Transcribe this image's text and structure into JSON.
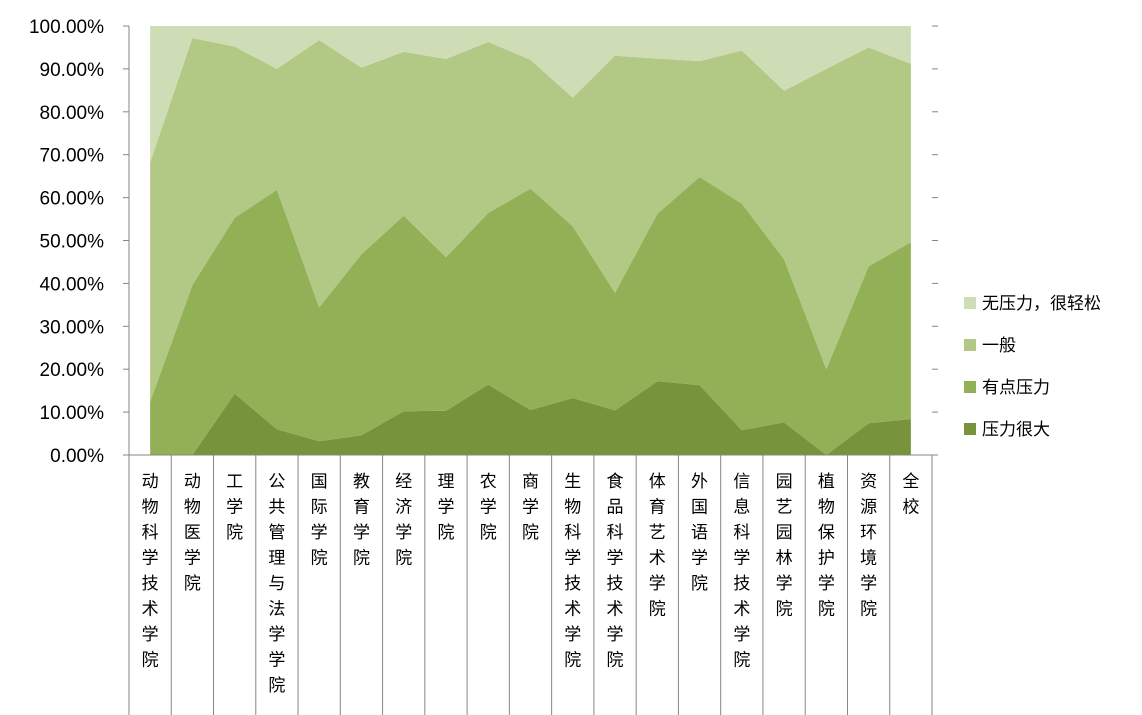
{
  "chart_data": {
    "type": "area",
    "stacked": true,
    "percent": true,
    "ylim": [
      0,
      100
    ],
    "yticks": [
      "0.00%",
      "10.00%",
      "20.00%",
      "30.00%",
      "40.00%",
      "50.00%",
      "60.00%",
      "70.00%",
      "80.00%",
      "90.00%",
      "100.00%"
    ],
    "categories": [
      "动物科学技术学院",
      "动物医学院",
      "工学院",
      "公共管理与法学学院",
      "国际学院",
      "教育学院",
      "经济学院",
      "理学院",
      "农学院",
      "商学院",
      "生物科学技术学院",
      "食品科学技术学院",
      "体育艺术学院",
      "外国语学院",
      "信息科学技术学院",
      "园艺园林学院",
      "植物保护学院",
      "资源环境学院",
      "全校"
    ],
    "series": [
      {
        "name": "压力很大",
        "color": "#77933c",
        "values": [
          0,
          0,
          14.3,
          6.0,
          3.2,
          4.6,
          10.2,
          10.3,
          16.4,
          10.5,
          13.3,
          10.4,
          17.2,
          16.3,
          5.8,
          7.6,
          0,
          7.4,
          8.4
        ]
      },
      {
        "name": "有点压力",
        "color": "#92b056",
        "values": [
          12.4,
          39.6,
          41.0,
          55.8,
          31.2,
          42.2,
          45.6,
          35.8,
          40.0,
          51.6,
          40.0,
          27.4,
          39.0,
          48.5,
          52.8,
          38.0,
          20.0,
          36.6,
          41.2
        ]
      },
      {
        "name": "一般",
        "color": "#b2c985",
        "values": [
          55.8,
          57.6,
          39.9,
          28.2,
          62.3,
          43.5,
          38.2,
          46.2,
          39.9,
          30.0,
          30.0,
          55.3,
          36.2,
          27.0,
          35.7,
          39.3,
          70.0,
          51.0,
          41.6
        ]
      },
      {
        "name": "无压力，很轻松",
        "color": "#cfddb6",
        "values": [
          31.8,
          2.8,
          4.8,
          10.0,
          3.3,
          9.7,
          6.0,
          7.7,
          3.7,
          7.9,
          16.7,
          6.9,
          7.6,
          8.2,
          5.7,
          15.1,
          10.0,
          5.0,
          8.8
        ]
      }
    ],
    "legend_position": "right",
    "legend_order": [
      "无压力，很轻松",
      "一般",
      "有点压力",
      "压力很大"
    ],
    "grid": false
  }
}
